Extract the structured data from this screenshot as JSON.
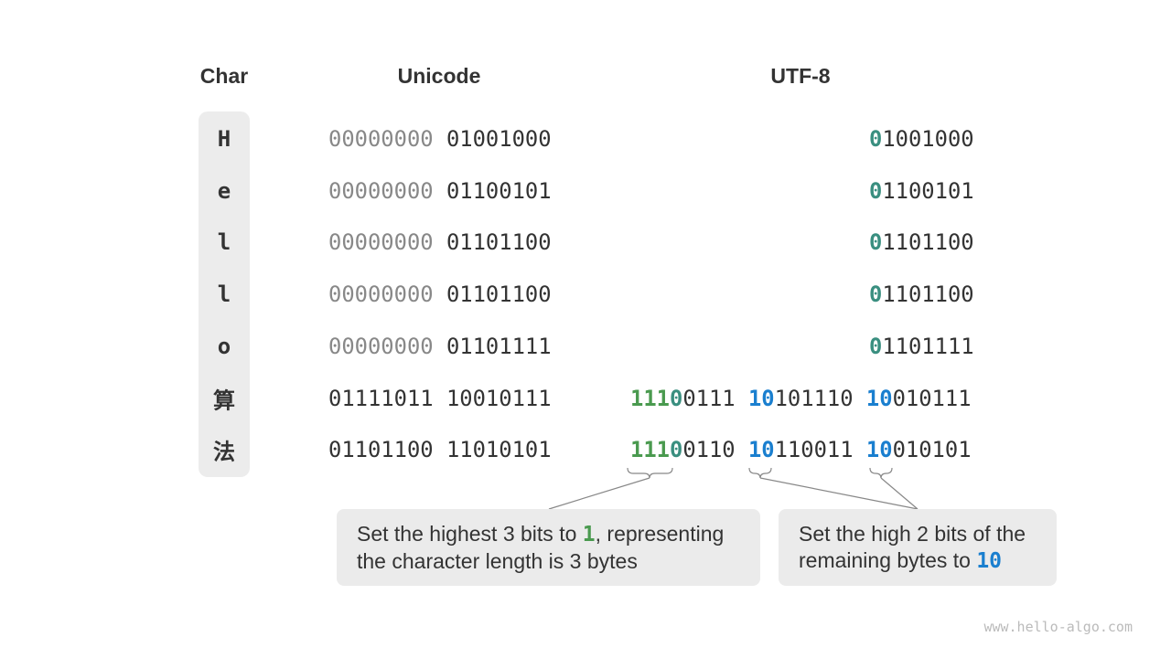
{
  "headers": {
    "char": "Char",
    "unicode": "Unicode",
    "utf8": "UTF-8"
  },
  "colors": {
    "green": "#4a9a4f",
    "teal": "#3a8f80",
    "blue": "#1a7fcf",
    "gray": "#888888",
    "box": "#ebebeb"
  },
  "rows": [
    {
      "char": "H",
      "unicode_high": "00000000",
      "unicode_low": "01001000",
      "utf8": [
        [
          [
            "t",
            "0"
          ],
          [
            "n",
            "1001000"
          ]
        ]
      ]
    },
    {
      "char": "e",
      "unicode_high": "00000000",
      "unicode_low": "01100101",
      "utf8": [
        [
          [
            "t",
            "0"
          ],
          [
            "n",
            "1100101"
          ]
        ]
      ]
    },
    {
      "char": "l",
      "unicode_high": "00000000",
      "unicode_low": "01101100",
      "utf8": [
        [
          [
            "t",
            "0"
          ],
          [
            "n",
            "1101100"
          ]
        ]
      ]
    },
    {
      "char": "l",
      "unicode_high": "00000000",
      "unicode_low": "01101100",
      "utf8": [
        [
          [
            "t",
            "0"
          ],
          [
            "n",
            "1101100"
          ]
        ]
      ]
    },
    {
      "char": "o",
      "unicode_high": "00000000",
      "unicode_low": "01101111",
      "utf8": [
        [
          [
            "t",
            "0"
          ],
          [
            "n",
            "1101111"
          ]
        ]
      ]
    },
    {
      "char": "算",
      "unicode_high": "01111011",
      "unicode_low": "10010111",
      "utf8": [
        [
          [
            "g",
            "111"
          ],
          [
            "t",
            "0"
          ],
          [
            "n",
            "0111"
          ]
        ],
        [
          [
            "b",
            "10"
          ],
          [
            "n",
            "101110"
          ]
        ],
        [
          [
            "b",
            "10"
          ],
          [
            "n",
            "010111"
          ]
        ]
      ]
    },
    {
      "char": "法",
      "unicode_high": "01101100",
      "unicode_low": "11010101",
      "utf8": [
        [
          [
            "g",
            "111"
          ],
          [
            "t",
            "0"
          ],
          [
            "n",
            "0110"
          ]
        ],
        [
          [
            "b",
            "10"
          ],
          [
            "n",
            "110011"
          ]
        ],
        [
          [
            "b",
            "10"
          ],
          [
            "n",
            "010101"
          ]
        ]
      ]
    }
  ],
  "callouts": {
    "left": {
      "before": "Set the highest 3 bits to ",
      "highlight": "1",
      "after": ", representing the character length is 3 bytes"
    },
    "right": {
      "before": "Set the high 2 bits of the remaining bytes to ",
      "highlight": "10"
    }
  },
  "watermark": "www.hello-algo.com"
}
